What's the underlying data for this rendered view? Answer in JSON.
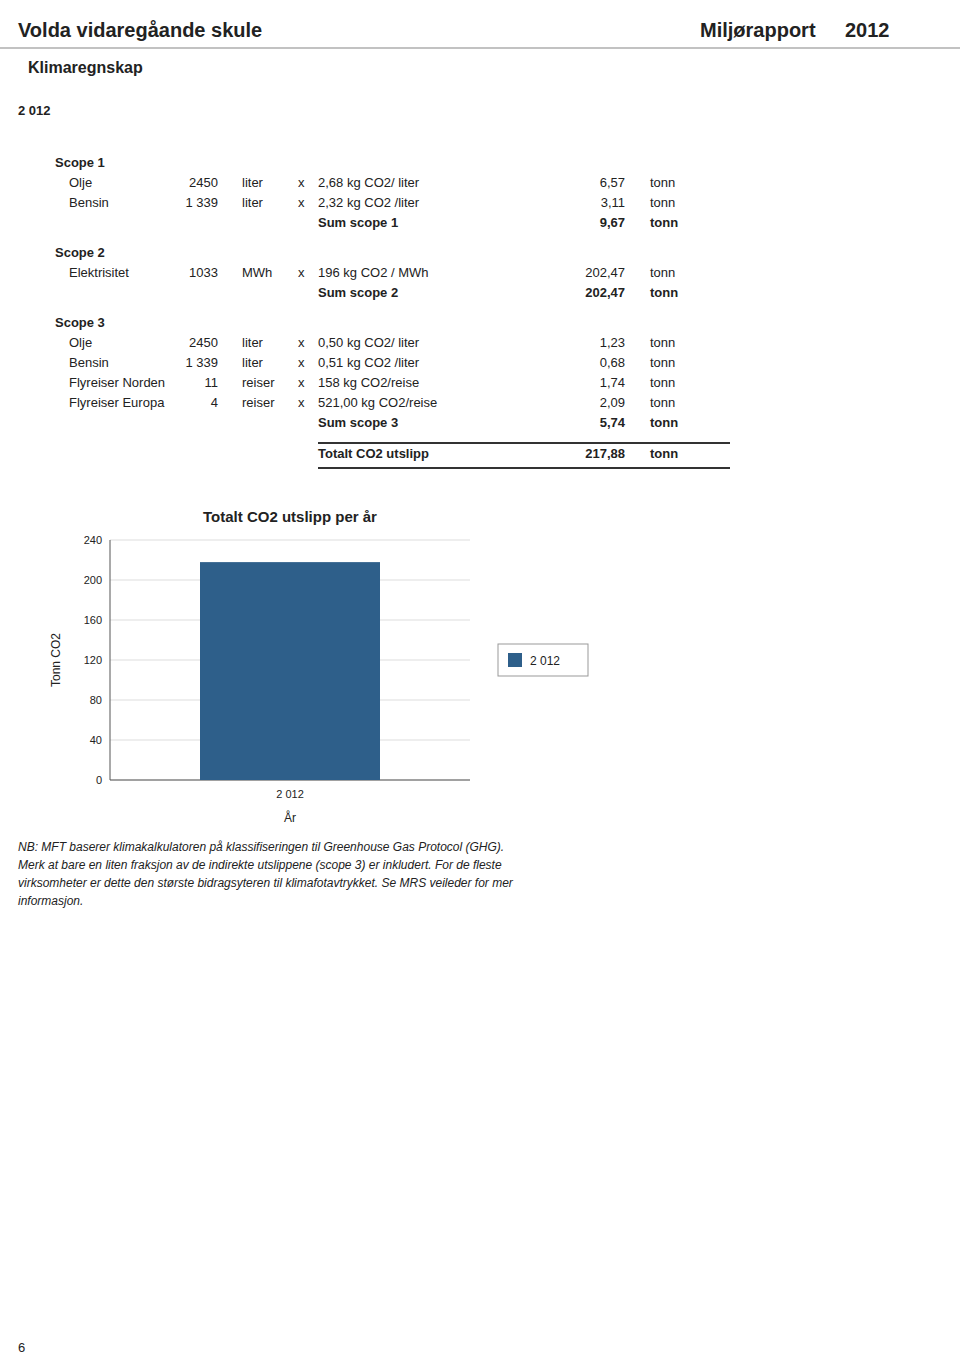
{
  "title_left": "Volda vidaregåande skule",
  "title_right": "Miljørapport",
  "year": "2012",
  "subtitle": "Klimaregnskap",
  "year_label": "2 012",
  "table": {
    "scopes": [
      {
        "label": "Scope 1",
        "rows": [
          [
            "Olje",
            "2450",
            "liter",
            "x",
            "2,68 kg CO2/ liter",
            "6,57",
            "tonn"
          ],
          [
            "Bensin",
            "1 339",
            "liter",
            "x",
            "2,32 kg CO2 /liter",
            "3,11",
            "tonn"
          ]
        ],
        "sum_label": "Sum scope 1",
        "sum": "9,67",
        "sum_unit": "tonn"
      },
      {
        "label": "Scope 2",
        "rows": [
          [
            "Elektrisitet",
            "1033",
            "MWh",
            "x",
            "196 kg CO2 / MWh",
            "202,47",
            "tonn"
          ]
        ],
        "sum_label": "Sum scope 2",
        "sum": "202,47",
        "sum_unit": "tonn"
      },
      {
        "label": "Scope 3",
        "rows": [
          [
            "Olje",
            "2450",
            "liter",
            "x",
            "0,50 kg CO2/ liter",
            "1,23",
            "tonn"
          ],
          [
            "Bensin",
            "1 339",
            "liter",
            "x",
            "0,51 kg CO2 /liter",
            "0,68",
            "tonn"
          ],
          [
            "Flyreiser Norden",
            "11",
            "reiser",
            "x",
            "158 kg CO2/reise",
            "1,74",
            "tonn"
          ],
          [
            "Flyreiser Europa",
            "4",
            "reiser",
            "x",
            "521,00 kg CO2/reise",
            "2,09",
            "tonn"
          ]
        ],
        "sum_label": "Sum scope 3",
        "sum": "5,74",
        "sum_unit": "tonn"
      }
    ],
    "total_label": "Totalt CO2 utslipp",
    "total_value": "217,88",
    "total_unit": "tonn"
  },
  "footnote": [
    "NB: MFT baserer klimakalkulatoren på klassifiseringen til Greenhouse Gas Protocol (GHG).",
    "Merk at bare en liten fraksjon av de indirekte utslippene (scope 3) er inkludert. For de fleste",
    "virksomheter er dette den største bidragsyteren til klimafotavtrykket. Se MRS veileder for mer",
    "informasjon."
  ],
  "page_number": "6",
  "chart_data": {
    "type": "bar",
    "title": "Totalt CO2 utslipp per år",
    "xlabel": "År",
    "ylabel": "Tonn CO2",
    "categories": [
      "2 012"
    ],
    "series": [
      {
        "name": "2 012",
        "color": "#2E5F8A",
        "values": [
          217.88
        ]
      }
    ],
    "ylim": [
      0,
      240
    ],
    "yticks": [
      0,
      40,
      80,
      120,
      160,
      200,
      240
    ],
    "grid": true,
    "legend": "right"
  }
}
